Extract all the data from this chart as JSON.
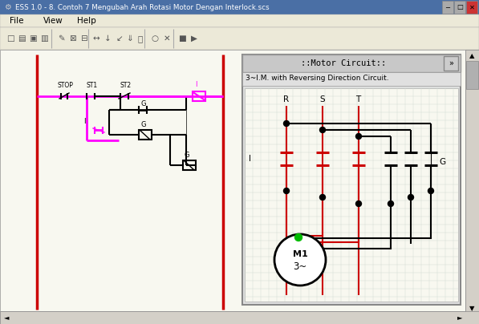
{
  "title": "ESS 1.0 - 8. Contoh 7 Mengubah Arah Rotasi Motor Dengan Interlock.scs",
  "menu_items": [
    "File",
    "View",
    "Help"
  ],
  "bg_titlebar": "#4a6fa5",
  "bg_menu": "#ece9d8",
  "bg_canvas": "#f8f8f0",
  "bg_window": "#d4d0c8",
  "grid_color": "#d0d8d0",
  "panel_title": "::Motor Circuit::",
  "panel_subtitle": "3~I.M. with Reversing Direction Circuit.",
  "magenta": "#ff00ff",
  "red_rail": "#cc0000",
  "black": "#000000",
  "green": "#00bb00",
  "label_R": "R",
  "label_S": "S",
  "label_T": "T",
  "label_I": "I",
  "label_G": "G",
  "label_STOP": "STOP",
  "label_ST1": "ST1",
  "label_ST2": "ST2",
  "label_M1": "M1",
  "label_3tilde": "3~",
  "fig_w": 5.97,
  "fig_h": 4.04,
  "dpi": 100
}
